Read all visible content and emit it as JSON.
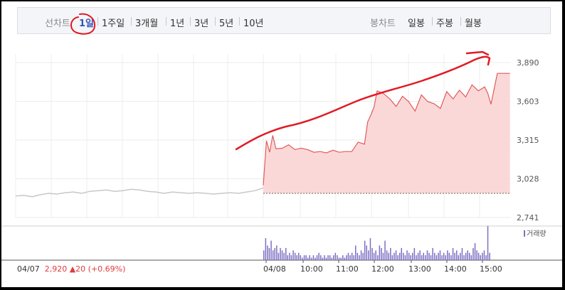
{
  "period_tabs": {
    "label": "선차트",
    "items": [
      "1일",
      "1주일",
      "3개월",
      "1년",
      "3년",
      "5년",
      "10년"
    ],
    "active": "1일"
  },
  "candle_tabs": {
    "label": "봉차트",
    "items": [
      "일봉",
      "주봉",
      "월봉"
    ]
  },
  "footer": {
    "date": "04/07",
    "price": "2,920",
    "change_arrow": "▲",
    "change": "20",
    "change_pct": "(+0.69%)"
  },
  "colors": {
    "fill": "#fbd8d8",
    "line": "#e35a5a",
    "prev_line": "#c8c8c8",
    "volume": "#7d6fc2",
    "annotation": "#e01b24",
    "active_tab": "#3355bb"
  },
  "chart_data": {
    "type": "area",
    "ylim": [
      2741,
      3890
    ],
    "y_ticks": [
      "3,890",
      "3,603",
      "3,315",
      "3,028",
      "2,741"
    ],
    "x_ticks": [
      "04/08",
      "10:00",
      "11:00",
      "12:00",
      "13:00",
      "14:00",
      "15:00"
    ],
    "baseline": 2920,
    "grid": true,
    "legend": "top-right",
    "previous_day": {
      "date": "04/07",
      "values": [
        2900,
        2905,
        2895,
        2910,
        2920,
        2915,
        2925,
        2930,
        2920,
        2935,
        2940,
        2945,
        2935,
        2940,
        2950,
        2945,
        2935,
        2930,
        2920,
        2930,
        2925,
        2920,
        2925,
        2920,
        2915,
        2920,
        2925,
        2920,
        2930,
        2940,
        2960
      ]
    },
    "series": [
      {
        "x": [
          "09:00",
          "09:05",
          "09:10",
          "09:15",
          "09:20",
          "09:30",
          "09:40",
          "09:50",
          "10:00",
          "10:10",
          "10:20",
          "10:30",
          "10:40",
          "10:50",
          "11:00",
          "11:10",
          "11:20",
          "11:30",
          "11:40",
          "11:45",
          "11:50",
          "11:55",
          "12:00",
          "12:10",
          "12:20",
          "12:30",
          "12:40",
          "12:50",
          "13:00",
          "13:10",
          "13:20",
          "13:30",
          "13:40",
          "13:50",
          "14:00",
          "14:10",
          "14:20",
          "14:30",
          "14:40",
          "14:50",
          "14:55",
          "15:00",
          "15:10",
          "15:20",
          "15:30"
        ],
        "values": [
          2980,
          3310,
          3225,
          3350,
          3250,
          3255,
          3280,
          3245,
          3255,
          3245,
          3225,
          3230,
          3220,
          3240,
          3225,
          3230,
          3230,
          3300,
          3285,
          3450,
          3500,
          3560,
          3680,
          3660,
          3620,
          3565,
          3640,
          3600,
          3530,
          3650,
          3600,
          3585,
          3550,
          3675,
          3620,
          3685,
          3635,
          3725,
          3680,
          3710,
          3660,
          3580,
          3810,
          3810,
          3810
        ]
      }
    ],
    "volume": {
      "label": "거래량",
      "values": [
        4,
        9,
        6,
        5,
        8,
        4,
        5,
        6,
        3,
        5,
        4,
        3,
        5,
        2,
        3,
        2,
        4,
        3,
        2,
        3,
        2,
        1,
        2,
        2,
        1,
        2,
        1,
        2,
        1,
        2,
        3,
        2,
        1,
        2,
        1,
        2,
        2,
        1,
        2,
        3,
        2,
        1,
        1,
        2,
        1,
        2,
        3,
        2,
        3,
        2,
        6,
        3,
        2,
        4,
        3,
        8,
        6,
        4,
        9,
        5,
        3,
        4,
        2,
        6,
        5,
        3,
        8,
        4,
        3,
        5,
        2,
        3,
        4,
        2,
        3,
        5,
        3,
        2,
        4,
        3,
        2,
        3,
        5,
        2,
        3,
        4,
        2,
        3,
        2,
        4,
        3,
        2,
        5,
        3,
        2,
        3,
        4,
        2,
        3,
        2,
        4,
        3,
        2,
        5,
        3,
        4,
        2,
        3,
        5,
        2,
        3,
        4,
        3,
        2,
        5,
        7,
        4,
        3,
        2,
        3,
        4,
        2,
        14,
        3
      ]
    }
  }
}
